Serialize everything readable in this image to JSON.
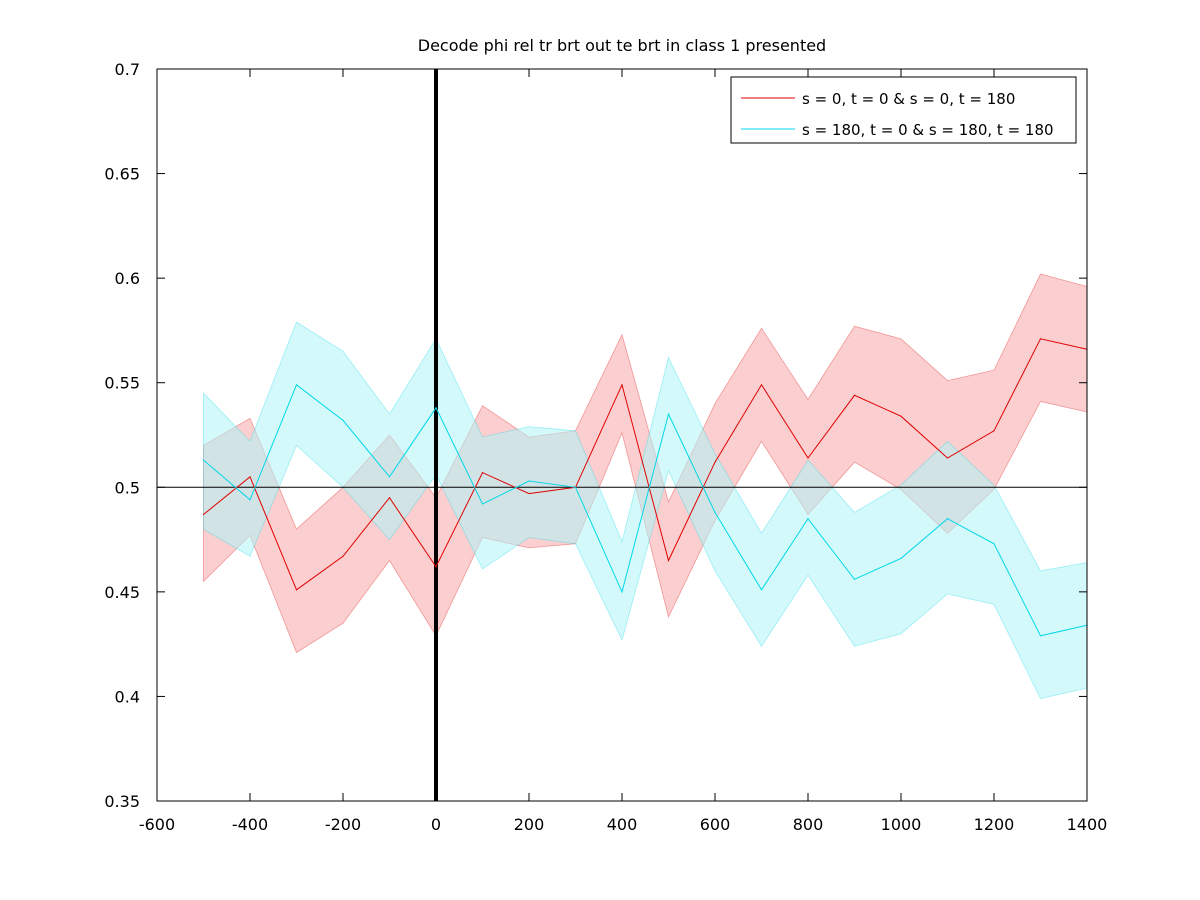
{
  "chart_data": {
    "type": "line",
    "title": "Decode phi rel tr brt out te brt in  class 1 presented",
    "xlabel": "",
    "ylabel": "",
    "xlim": [
      -600,
      1400
    ],
    "ylim": [
      0.35,
      0.7
    ],
    "x_ticks": [
      -600,
      -400,
      -200,
      0,
      200,
      400,
      600,
      800,
      1000,
      1200,
      1400
    ],
    "y_ticks": [
      0.35,
      0.4,
      0.45,
      0.5,
      0.55,
      0.6,
      0.65,
      0.7
    ],
    "x_tick_labels": [
      "-600",
      "-400",
      "-200",
      "0",
      "200",
      "400",
      "600",
      "800",
      "1000",
      "1200",
      "1400"
    ],
    "y_tick_labels": [
      "0.35",
      "0.4",
      "0.45",
      "0.5",
      "0.55",
      "0.6",
      "0.65",
      "0.7"
    ],
    "grid": false,
    "legend_position": "top-right",
    "x": [
      -500,
      -400,
      -300,
      -200,
      -100,
      0,
      100,
      200,
      300,
      400,
      500,
      600,
      700,
      800,
      900,
      1000,
      1100,
      1200,
      1300,
      1400
    ],
    "series": [
      {
        "name": "s = 0, t = 0 & s = 0, t = 180",
        "color": "#e00000",
        "band_color": "#f7a8a8",
        "values": [
          0.487,
          0.505,
          0.451,
          0.467,
          0.495,
          0.462,
          0.507,
          0.497,
          0.5,
          0.549,
          0.465,
          0.512,
          0.549,
          0.514,
          0.544,
          0.534,
          0.514,
          0.527,
          0.571,
          0.566
        ],
        "upper": [
          0.52,
          0.533,
          0.48,
          0.5,
          0.525,
          0.495,
          0.539,
          0.524,
          0.527,
          0.573,
          0.493,
          0.54,
          0.576,
          0.542,
          0.577,
          0.571,
          0.551,
          0.556,
          0.602,
          0.596
        ],
        "lower": [
          0.455,
          0.477,
          0.421,
          0.435,
          0.465,
          0.429,
          0.476,
          0.471,
          0.473,
          0.526,
          0.438,
          0.484,
          0.522,
          0.487,
          0.512,
          0.499,
          0.478,
          0.499,
          0.541,
          0.536
        ]
      },
      {
        "name": "s = 180, t = 0 & s = 180, t = 180",
        "color": "#00d8e8",
        "band_color": "#b0f4f8",
        "values": [
          0.513,
          0.494,
          0.549,
          0.532,
          0.505,
          0.538,
          0.492,
          0.503,
          0.5,
          0.45,
          0.535,
          0.488,
          0.451,
          0.485,
          0.456,
          0.466,
          0.485,
          0.473,
          0.429,
          0.434
        ],
        "upper": [
          0.545,
          0.522,
          0.579,
          0.565,
          0.535,
          0.571,
          0.524,
          0.529,
          0.527,
          0.474,
          0.562,
          0.516,
          0.478,
          0.513,
          0.488,
          0.501,
          0.522,
          0.501,
          0.46,
          0.464
        ],
        "lower": [
          0.48,
          0.467,
          0.52,
          0.5,
          0.475,
          0.506,
          0.461,
          0.476,
          0.473,
          0.427,
          0.508,
          0.46,
          0.424,
          0.458,
          0.424,
          0.43,
          0.449,
          0.444,
          0.399,
          0.404
        ]
      }
    ],
    "reference_lines": {
      "horizontal_y": 0.5,
      "vertical_x": 0
    }
  }
}
